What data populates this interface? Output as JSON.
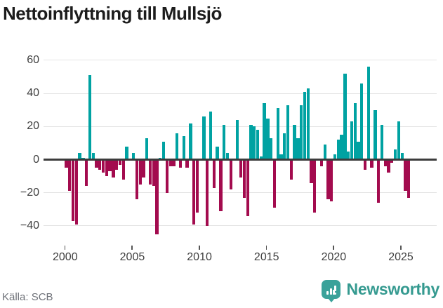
{
  "title": "Nettoinflyttning till Mullsjö",
  "source_label": "Källa: SCB",
  "brand": {
    "name": "Newsworthy"
  },
  "colors": {
    "positive_bar": "#00a2a2",
    "negative_bar": "#a30b4e",
    "zero_axis": "#3c3c3c",
    "gridline": "#e4e4e4",
    "tick_text": "#3f3f3f",
    "title_text": "#1c1c1c",
    "source_text": "#6e7178",
    "brand_teal": "#3aa29a"
  },
  "chart_data": {
    "type": "bar",
    "title": "Nettoinflyttning till Mullsjö",
    "xlabel": "",
    "ylabel": "",
    "frequency": "quarterly",
    "ylim": [
      -48,
      62
    ],
    "grid": true,
    "legend": false,
    "y_ticks": [
      60,
      40,
      20,
      0,
      -20,
      -40
    ],
    "y_tick_labels": [
      "60",
      "40",
      "20",
      "0",
      "−20",
      "−40"
    ],
    "x_ticks": [
      {
        "label": "2000",
        "n": 0
      },
      {
        "label": "2005",
        "n": 20
      },
      {
        "label": "2010",
        "n": 40
      },
      {
        "label": "2015",
        "n": 60
      },
      {
        "label": "2020",
        "n": 80
      },
      {
        "label": "2025",
        "n": 100
      }
    ],
    "categories": [
      "2000Q1",
      "2000Q2",
      "2000Q3",
      "2000Q4",
      "2001Q1",
      "2001Q2",
      "2001Q3",
      "2001Q4",
      "2002Q1",
      "2002Q2",
      "2002Q3",
      "2002Q4",
      "2003Q1",
      "2003Q2",
      "2003Q3",
      "2003Q4",
      "2004Q1",
      "2004Q2",
      "2004Q3",
      "2004Q4",
      "2005Q1",
      "2005Q2",
      "2005Q3",
      "2005Q4",
      "2006Q1",
      "2006Q2",
      "2006Q3",
      "2006Q4",
      "2007Q1",
      "2007Q2",
      "2007Q3",
      "2007Q4",
      "2008Q1",
      "2008Q2",
      "2008Q3",
      "2008Q4",
      "2009Q1",
      "2009Q2",
      "2009Q3",
      "2009Q4",
      "2010Q1",
      "2010Q2",
      "2010Q3",
      "2010Q4",
      "2011Q1",
      "2011Q2",
      "2011Q3",
      "2011Q4",
      "2012Q1",
      "2012Q2",
      "2012Q3",
      "2012Q4",
      "2013Q1",
      "2013Q2",
      "2013Q3",
      "2013Q4",
      "2014Q1",
      "2014Q2",
      "2014Q3",
      "2014Q4",
      "2015Q1",
      "2015Q2",
      "2015Q3",
      "2015Q4",
      "2016Q1",
      "2016Q2",
      "2016Q3",
      "2016Q4",
      "2017Q1",
      "2017Q2",
      "2017Q3",
      "2017Q4",
      "2018Q1",
      "2018Q2",
      "2018Q3",
      "2018Q4",
      "2019Q1",
      "2019Q2",
      "2019Q3",
      "2019Q4",
      "2020Q1",
      "2020Q2",
      "2020Q3",
      "2020Q4",
      "2021Q1",
      "2021Q2",
      "2021Q3",
      "2021Q4",
      "2022Q1",
      "2022Q2",
      "2022Q3",
      "2022Q4",
      "2023Q1",
      "2023Q2",
      "2023Q3",
      "2023Q4",
      "2024Q1",
      "2024Q2",
      "2024Q3",
      "2024Q4",
      "2025Q1",
      "2025Q2",
      "2025Q3"
    ],
    "values": [
      -5,
      -19,
      -37,
      -39,
      4,
      1,
      -16,
      51,
      4,
      -5,
      -6,
      -8,
      -10,
      -7,
      -11,
      -6,
      -3,
      -12,
      8,
      0,
      4,
      -24,
      -15,
      -11,
      13,
      -15,
      -16,
      -45,
      1,
      11,
      -20,
      -4,
      -4,
      16,
      -5,
      14,
      -5,
      22,
      -39,
      -32,
      0,
      26,
      -40,
      29,
      -17,
      8,
      -31,
      21,
      4,
      -18,
      0,
      24,
      -11,
      -23,
      -34,
      21,
      20,
      18,
      2,
      34,
      25,
      13,
      -29,
      31,
      3,
      16,
      33,
      -12,
      21,
      13,
      33,
      41,
      43,
      -14,
      -32,
      0,
      -4,
      9,
      -24,
      -25,
      3,
      12,
      15,
      52,
      5,
      23,
      34,
      11,
      46,
      -6,
      56,
      -5,
      30,
      -26,
      21,
      -4,
      -8,
      -2,
      6,
      23,
      4,
      -19,
      -23
    ]
  }
}
